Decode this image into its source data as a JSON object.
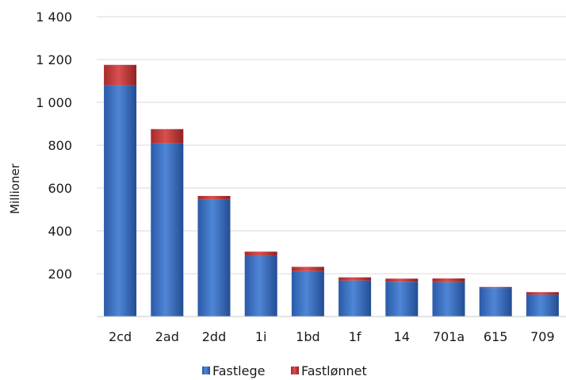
{
  "chart_data": {
    "type": "bar",
    "stacked": true,
    "categories": [
      "2cd",
      "2ad",
      "2dd",
      "1i",
      "1bd",
      "1f",
      "14",
      "701a",
      "615",
      "709"
    ],
    "series": [
      {
        "name": "Fastlege",
        "color": "#3a6fc4",
        "values": [
          1080,
          808,
          545,
          283,
          212,
          168,
          162,
          160,
          133,
          102
        ]
      },
      {
        "name": "Fastlønnet",
        "color": "#c0393b",
        "values": [
          95,
          67,
          18,
          20,
          20,
          15,
          15,
          18,
          5,
          12
        ]
      }
    ],
    "ylabel": "Millioner",
    "ylim": [
      0,
      1400
    ],
    "yticks": [
      200,
      400,
      600,
      800,
      1000,
      1200,
      1400
    ],
    "ytick_labels": [
      "200",
      "400",
      "600",
      "800",
      "1 000",
      "1 200",
      "1 400"
    ],
    "grid": true,
    "legend_position": "bottom"
  }
}
